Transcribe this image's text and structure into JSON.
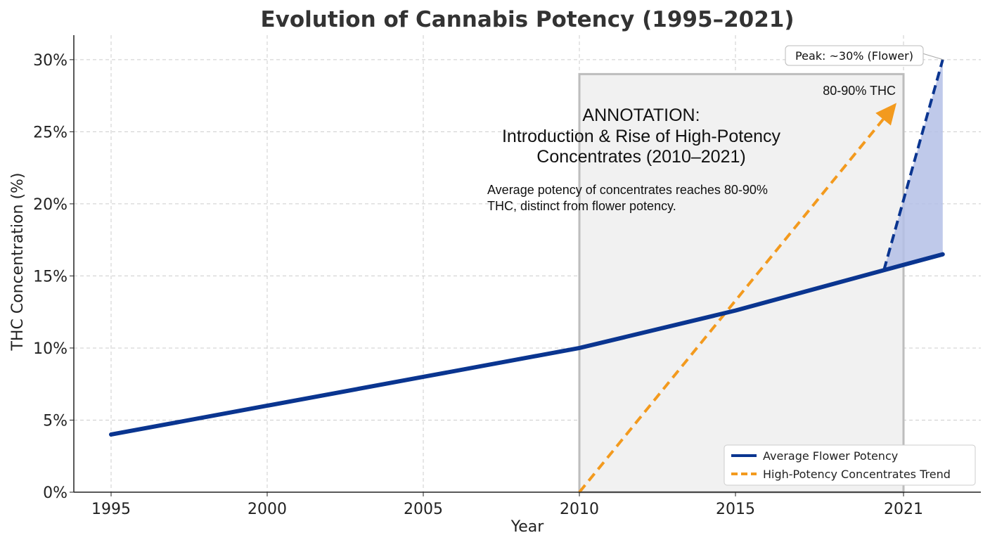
{
  "chart_data": {
    "type": "line",
    "title": "Evolution of Cannabis Potency (1995–2021)",
    "xlabel": "Year",
    "ylabel": "THC Concentration (%)",
    "x_ticks": [
      1995,
      2000,
      2005,
      2010,
      2015,
      2021
    ],
    "x_tick_labels": [
      "1995",
      "2000",
      "2005",
      "2010",
      "2015",
      "2021"
    ],
    "y_ticks": [
      0,
      5,
      10,
      15,
      20,
      25,
      30
    ],
    "y_tick_labels": [
      "0%",
      "5%",
      "10%",
      "15%",
      "20%",
      "25%",
      "30%"
    ],
    "xlim": [
      1993.8,
      2024.2
    ],
    "ylim": [
      0,
      31.7
    ],
    "grid": true,
    "legend_placement": "bottom-right",
    "series": [
      {
        "name": "Average Flower Potency",
        "style": "solid",
        "color": "#0a3590",
        "x": [
          1995,
          2000,
          2005,
          2010,
          2015,
          2020.3,
          2022.4
        ],
        "y": [
          4,
          6,
          8,
          10,
          12.6,
          15.4,
          16.5
        ]
      },
      {
        "name": "High-Potency Concentrates Trend",
        "style": "dashed",
        "color": "#f39a1e",
        "x": [
          2010,
          2020.75
        ],
        "y": [
          0,
          27
        ],
        "arrow_end": true
      }
    ],
    "peak_segment": {
      "color": "#0a3590",
      "fill_color": "#b4c0e6",
      "x": [
        2020.3,
        2022.4
      ],
      "y": [
        15.4,
        30
      ]
    },
    "shaded_region": {
      "x": [
        2010,
        2021
      ],
      "y": [
        0,
        29
      ],
      "fill": "#f1f1f1",
      "stroke": "#bdbdbd"
    },
    "annotations": {
      "heading": [
        "ANNOTATION:",
        "Introduction & Rise of High-Potency",
        "Concentrates (2010–2021)"
      ],
      "body": [
        "Average potency of concentrates reaches 80-90%",
        "THC, distinct from flower potency."
      ],
      "arrow_label": "80-90% THC",
      "peak_label": "Peak: ~30% (Flower)"
    }
  }
}
